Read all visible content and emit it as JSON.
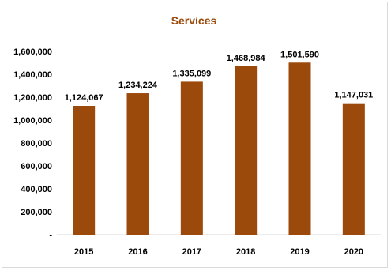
{
  "chart_data": {
    "type": "bar",
    "title": "Services",
    "categories": [
      "2015",
      "2016",
      "2017",
      "2018",
      "2019",
      "2020"
    ],
    "values": [
      1124067,
      1234224,
      1335099,
      1468984,
      1501590,
      1147031
    ],
    "value_labels": [
      "1,124,067",
      "1,234,224",
      "1,335,099",
      "1,468,984",
      "1,501,590",
      "1,147,031"
    ],
    "yticks": [
      0,
      200000,
      400000,
      600000,
      800000,
      1000000,
      1200000,
      1400000,
      1600000
    ],
    "ytick_labels": [
      "-",
      "200,000",
      "400,000",
      "600,000",
      "800,000",
      "1,000,000",
      "1,200,000",
      "1,400,000",
      "1,600,000"
    ],
    "ylim": [
      0,
      1600000
    ],
    "xlabel": "",
    "ylabel": "",
    "grid": false,
    "legend": "none",
    "bar_color": "#9c4a0c",
    "title_color": "#9c4a0c"
  }
}
